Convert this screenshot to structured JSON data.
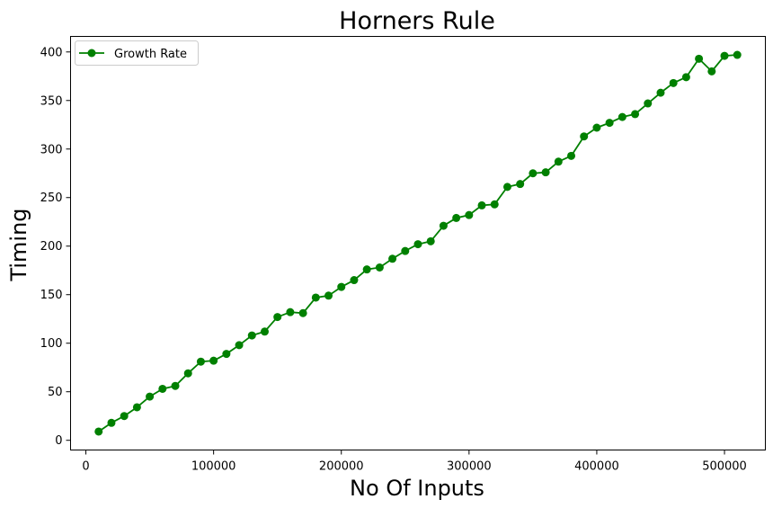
{
  "chart_data": {
    "type": "line",
    "title": "Horners Rule",
    "xlabel": "No Of Inputs",
    "ylabel": "Timing",
    "xlim": [
      -12000,
      532000
    ],
    "ylim": [
      -10,
      416
    ],
    "x_ticks": [
      0,
      100000,
      200000,
      300000,
      400000,
      500000
    ],
    "y_ticks": [
      0,
      50,
      100,
      150,
      200,
      250,
      300,
      350,
      400
    ],
    "grid": false,
    "legend_position": "upper-left",
    "series": [
      {
        "name": "Growth Rate",
        "color": "#008000",
        "marker": "circle",
        "x": [
          10000,
          20000,
          30000,
          40000,
          50000,
          60000,
          70000,
          80000,
          90000,
          100000,
          110000,
          120000,
          130000,
          140000,
          150000,
          160000,
          170000,
          180000,
          190000,
          200000,
          210000,
          220000,
          230000,
          240000,
          250000,
          260000,
          270000,
          280000,
          290000,
          300000,
          310000,
          320000,
          330000,
          340000,
          350000,
          360000,
          370000,
          380000,
          390000,
          400000,
          410000,
          420000,
          430000,
          440000,
          450000,
          460000,
          470000,
          480000,
          490000,
          500000,
          510000
        ],
        "y": [
          9,
          18,
          25,
          34,
          45,
          53,
          56,
          69,
          81,
          82,
          89,
          98,
          108,
          112,
          127,
          132,
          131,
          147,
          149,
          158,
          165,
          176,
          178,
          187,
          195,
          202,
          205,
          221,
          229,
          232,
          242,
          243,
          261,
          264,
          275,
          276,
          287,
          293,
          313,
          322,
          327,
          333,
          336,
          347,
          358,
          368,
          374,
          393,
          380,
          396,
          397
        ]
      }
    ]
  }
}
